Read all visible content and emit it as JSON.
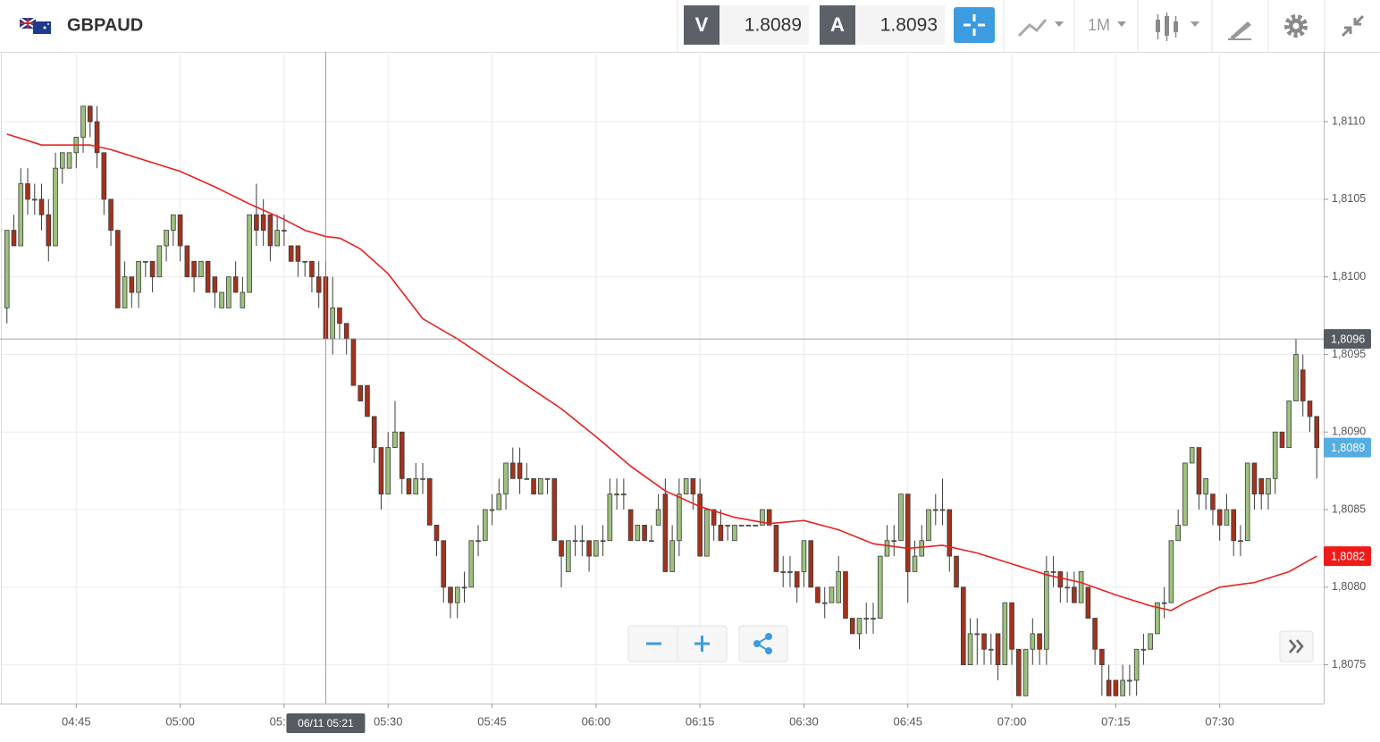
{
  "toolbar": {
    "symbol": "GBPAUD",
    "bid_label": "V",
    "bid": 1.8089,
    "ask_label": "A",
    "ask": 1.8093,
    "timeframe": "1M"
  },
  "chart_data": {
    "type": "candlestick",
    "x": [
      "04:35",
      "04:36",
      "04:37",
      "04:38",
      "04:39",
      "04:40",
      "04:41",
      "04:42",
      "04:43",
      "04:44",
      "04:45",
      "04:46",
      "04:47",
      "04:48",
      "04:49",
      "04:50",
      "04:51",
      "04:52",
      "04:53",
      "04:54",
      "04:55",
      "04:56",
      "04:57",
      "04:58",
      "04:59",
      "05:00",
      "05:01",
      "05:02",
      "05:03",
      "05:04",
      "05:05",
      "05:06",
      "05:07",
      "05:08",
      "05:09",
      "05:10",
      "05:11",
      "05:12",
      "05:13",
      "05:14",
      "05:15",
      "05:16",
      "05:17",
      "05:18",
      "05:19",
      "05:20",
      "05:21",
      "05:22",
      "05:23",
      "05:24",
      "05:25",
      "05:26",
      "05:27",
      "05:28",
      "05:29",
      "05:30",
      "05:31",
      "05:32",
      "05:33",
      "05:34",
      "05:35",
      "05:36",
      "05:37",
      "05:38",
      "05:39",
      "05:40",
      "05:41",
      "05:42",
      "05:43",
      "05:44",
      "05:45",
      "05:46",
      "05:47",
      "05:48",
      "05:49",
      "05:50",
      "05:51",
      "05:52",
      "05:53",
      "05:54",
      "05:55",
      "05:56",
      "05:57",
      "05:58",
      "05:59",
      "06:00",
      "06:01",
      "06:02",
      "06:03",
      "06:04",
      "06:05",
      "06:06",
      "06:07",
      "06:08",
      "06:09",
      "06:10",
      "06:11",
      "06:12",
      "06:13",
      "06:14",
      "06:15",
      "06:16",
      "06:17",
      "06:18",
      "06:19",
      "06:20",
      "06:21",
      "06:22",
      "06:23",
      "06:24",
      "06:25",
      "06:26",
      "06:27",
      "06:28",
      "06:29",
      "06:30",
      "06:31",
      "06:32",
      "06:33",
      "06:34",
      "06:35",
      "06:36",
      "06:37",
      "06:38",
      "06:39",
      "06:40",
      "06:41",
      "06:42",
      "06:43",
      "06:44",
      "06:45",
      "06:46",
      "06:47",
      "06:48",
      "06:49",
      "06:50",
      "06:51",
      "06:52",
      "06:53",
      "06:54",
      "06:55",
      "06:56",
      "06:57",
      "06:58",
      "06:59",
      "07:00",
      "07:01",
      "07:02",
      "07:03",
      "07:04",
      "07:05",
      "07:06",
      "07:07",
      "07:08",
      "07:09",
      "07:10",
      "07:11",
      "07:12",
      "07:13",
      "07:14",
      "07:15",
      "07:16",
      "07:17",
      "07:18",
      "07:19",
      "07:20",
      "07:21",
      "07:22",
      "07:23",
      "07:24",
      "07:25",
      "07:26",
      "07:27",
      "07:28",
      "07:29",
      "07:30",
      "07:31",
      "07:32",
      "07:33",
      "07:34",
      "07:35",
      "07:36",
      "07:37",
      "07:38",
      "07:39",
      "07:40",
      "07:41",
      "07:42",
      "07:43",
      "07:44"
    ],
    "open": [
      1.8098,
      1.8103,
      1.8102,
      1.8106,
      1.8105,
      1.8105,
      1.8104,
      1.8102,
      1.8107,
      1.8107,
      1.8108,
      1.8109,
      1.8111,
      1.811,
      1.8108,
      1.8105,
      1.8103,
      1.8098,
      1.81,
      1.8099,
      1.8101,
      1.8101,
      1.81,
      1.8102,
      1.8103,
      1.8104,
      1.8102,
      1.8101,
      1.81,
      1.8101,
      1.81,
      1.8098,
      1.8098,
      1.81,
      1.8098,
      1.8099,
      1.8104,
      1.8104,
      1.8104,
      1.8102,
      1.8103,
      1.8102,
      1.8102,
      1.8101,
      1.8101,
      1.81,
      1.81,
      1.8096,
      1.8098,
      1.8097,
      1.8096,
      1.8093,
      1.8093,
      1.8091,
      1.8089,
      1.8086,
      1.8089,
      1.809,
      1.8087,
      1.8086,
      1.8087,
      1.8087,
      1.8084,
      1.8083,
      1.808,
      1.8079,
      1.808,
      1.808,
      1.8083,
      1.8083,
      1.8085,
      1.8085,
      1.8086,
      1.8088,
      1.8088,
      1.8087,
      1.8087,
      1.8086,
      1.8087,
      1.8087,
      1.8083,
      1.8081,
      1.8083,
      1.8083,
      1.8083,
      1.8082,
      1.8083,
      1.8083,
      1.8086,
      1.8086,
      1.8085,
      1.8083,
      1.8084,
      1.8083,
      1.8084,
      1.8086,
      1.8081,
      1.8083,
      1.8086,
      1.8087,
      1.8086,
      1.8082,
      1.8085,
      1.8084,
      1.8084,
      1.8083,
      1.8084,
      1.8084,
      1.8084,
      1.8084,
      1.8085,
      1.8084,
      1.8081,
      1.8081,
      1.8081,
      1.8081,
      1.8083,
      1.808,
      1.8079,
      1.8079,
      1.8079,
      1.8081,
      1.8078,
      1.8077,
      1.8078,
      1.8078,
      1.8078,
      1.8082,
      1.8083,
      1.8083,
      1.8086,
      1.8081,
      1.8082,
      1.8083,
      1.8085,
      1.8085,
      1.8085,
      1.8082,
      1.808,
      1.8075,
      1.8077,
      1.8077,
      1.8076,
      1.8077,
      1.8075,
      1.8079,
      1.8076,
      1.8073,
      1.8076,
      1.8077,
      1.8076,
      1.8081,
      1.8081,
      1.808,
      1.808,
      1.8079,
      1.808,
      1.8078,
      1.8076,
      1.8074,
      1.8074,
      1.8073,
      1.8074,
      1.8074,
      1.8076,
      1.8076,
      1.8077,
      1.8079,
      1.8079,
      1.8083,
      1.8084,
      1.8088,
      1.8089,
      1.8086,
      1.8086,
      1.8085,
      1.8084,
      1.8085,
      1.8083,
      1.8083,
      1.8088,
      1.8087,
      1.8086,
      1.8087,
      1.809,
      1.8089,
      1.8092,
      1.8094,
      1.8092,
      1.8091
    ],
    "high": [
      1.8103,
      1.8104,
      1.8107,
      1.8107,
      1.8106,
      1.8106,
      1.8105,
      1.8108,
      1.8108,
      1.8108,
      1.8109,
      1.8111,
      1.8111,
      1.8111,
      1.8108,
      1.8105,
      1.8103,
      1.8101,
      1.81,
      1.8101,
      1.8101,
      1.8101,
      1.8102,
      1.8103,
      1.8104,
      1.8104,
      1.8102,
      1.8101,
      1.8101,
      1.8101,
      1.81,
      1.8099,
      1.81,
      1.8101,
      1.81,
      1.8104,
      1.8106,
      1.8105,
      1.8104,
      1.8104,
      1.8104,
      1.8102,
      1.8102,
      1.8101,
      1.8101,
      1.8101,
      1.8101,
      1.81,
      1.8098,
      1.8097,
      1.8096,
      1.8093,
      1.8093,
      1.8091,
      1.8089,
      1.809,
      1.8092,
      1.809,
      1.8087,
      1.8088,
      1.8088,
      1.8087,
      1.8084,
      1.8083,
      1.808,
      1.808,
      1.8081,
      1.8083,
      1.8084,
      1.8085,
      1.8086,
      1.8087,
      1.8088,
      1.8089,
      1.8089,
      1.8088,
      1.8087,
      1.8087,
      1.8087,
      1.8087,
      1.8083,
      1.8083,
      1.8084,
      1.8084,
      1.8083,
      1.8083,
      1.8084,
      1.8087,
      1.8087,
      1.8087,
      1.8085,
      1.8084,
      1.8084,
      1.8084,
      1.8086,
      1.8087,
      1.8084,
      1.8087,
      1.8087,
      1.8087,
      1.8087,
      1.8085,
      1.8085,
      1.8085,
      1.8084,
      1.8084,
      1.8084,
      1.8084,
      1.8084,
      1.8085,
      1.8085,
      1.8084,
      1.8082,
      1.8082,
      1.8081,
      1.8083,
      1.8083,
      1.808,
      1.808,
      1.808,
      1.8082,
      1.8081,
      1.8078,
      1.8078,
      1.8079,
      1.8079,
      1.8082,
      1.8084,
      1.8084,
      1.8086,
      1.8086,
      1.8083,
      1.8084,
      1.8085,
      1.8086,
      1.8087,
      1.8085,
      1.8082,
      1.808,
      1.8078,
      1.8078,
      1.8077,
      1.8077,
      1.8077,
      1.8079,
      1.8079,
      1.8076,
      1.8076,
      1.8078,
      1.8077,
      1.8082,
      1.8082,
      1.8081,
      1.8081,
      1.8081,
      1.8081,
      1.808,
      1.8078,
      1.8076,
      1.8075,
      1.8074,
      1.8075,
      1.8075,
      1.8076,
      1.8077,
      1.8077,
      1.8079,
      1.808,
      1.8083,
      1.8085,
      1.8088,
      1.8089,
      1.8089,
      1.8087,
      1.8086,
      1.8085,
      1.8086,
      1.8085,
      1.8084,
      1.8088,
      1.8088,
      1.8087,
      1.8087,
      1.809,
      1.809,
      1.8092,
      1.8096,
      1.8095,
      1.8092,
      1.8091
    ],
    "low": [
      1.8097,
      1.8102,
      1.8102,
      1.8104,
      1.8104,
      1.8103,
      1.8101,
      1.8102,
      1.8106,
      1.8107,
      1.8107,
      1.8108,
      1.8109,
      1.8107,
      1.8104,
      1.8102,
      1.8098,
      1.8098,
      1.8098,
      1.8098,
      1.81,
      1.8099,
      1.81,
      1.8101,
      1.8102,
      1.8101,
      1.81,
      1.8099,
      1.81,
      1.8099,
      1.8098,
      1.8098,
      1.8098,
      1.8099,
      1.8098,
      1.8099,
      1.8102,
      1.8102,
      1.8101,
      1.8102,
      1.8102,
      1.8101,
      1.81,
      1.81,
      1.8099,
      1.8098,
      1.8096,
      1.8095,
      1.8096,
      1.8095,
      1.8093,
      1.8092,
      1.8091,
      1.8088,
      1.8085,
      1.8086,
      1.8089,
      1.8086,
      1.8086,
      1.8086,
      1.8086,
      1.8084,
      1.8082,
      1.8079,
      1.8078,
      1.8078,
      1.8079,
      1.808,
      1.8082,
      1.8083,
      1.8084,
      1.8085,
      1.8085,
      1.8087,
      1.8086,
      1.8087,
      1.8086,
      1.8086,
      1.8086,
      1.8083,
      1.808,
      1.8081,
      1.8082,
      1.8082,
      1.8081,
      1.8082,
      1.8082,
      1.8083,
      1.8085,
      1.8085,
      1.8083,
      1.8083,
      1.8083,
      1.8083,
      1.8084,
      1.8081,
      1.8081,
      1.8082,
      1.8086,
      1.8085,
      1.8082,
      1.8082,
      1.8083,
      1.8083,
      1.8083,
      1.8083,
      1.8084,
      1.8084,
      1.8084,
      1.8084,
      1.8084,
      1.8081,
      1.808,
      1.808,
      1.8079,
      1.808,
      1.808,
      1.8079,
      1.8078,
      1.8079,
      1.8079,
      1.8078,
      1.8077,
      1.8076,
      1.8077,
      1.8077,
      1.8078,
      1.8082,
      1.8082,
      1.8083,
      1.8079,
      1.8081,
      1.8082,
      1.8083,
      1.8084,
      1.8084,
      1.8081,
      1.808,
      1.8075,
      1.8075,
      1.8075,
      1.8075,
      1.8075,
      1.8074,
      1.8075,
      1.8075,
      1.8073,
      1.8073,
      1.8075,
      1.8075,
      1.8075,
      1.808,
      1.8079,
      1.8079,
      1.8079,
      1.8079,
      1.8078,
      1.8075,
      1.8073,
      1.8073,
      1.8073,
      1.8073,
      1.8073,
      1.8073,
      1.8075,
      1.8076,
      1.8077,
      1.8078,
      1.8079,
      1.8083,
      1.8084,
      1.8088,
      1.8085,
      1.8085,
      1.8084,
      1.8083,
      1.8084,
      1.8082,
      1.8082,
      1.8083,
      1.8085,
      1.8085,
      1.8085,
      1.8086,
      1.8089,
      1.8089,
      1.8092,
      1.8091,
      1.809,
      1.8087
    ],
    "close": [
      1.8103,
      1.8102,
      1.8106,
      1.8105,
      1.8105,
      1.8104,
      1.8102,
      1.8107,
      1.8108,
      1.8108,
      1.8109,
      1.8111,
      1.811,
      1.8108,
      1.8105,
      1.8103,
      1.8098,
      1.81,
      1.8099,
      1.8101,
      1.8101,
      1.81,
      1.8102,
      1.8103,
      1.8104,
      1.8102,
      1.81,
      1.81,
      1.8101,
      1.8099,
      1.8099,
      1.8099,
      1.81,
      1.8099,
      1.8099,
      1.8104,
      1.8103,
      1.8103,
      1.8102,
      1.8103,
      1.8103,
      1.8101,
      1.8101,
      1.8101,
      1.81,
      1.8099,
      1.8096,
      1.8098,
      1.8097,
      1.8096,
      1.8093,
      1.8092,
      1.8091,
      1.8089,
      1.8086,
      1.8089,
      1.809,
      1.8087,
      1.8086,
      1.8087,
      1.8087,
      1.8084,
      1.8083,
      1.808,
      1.8079,
      1.808,
      1.808,
      1.8083,
      1.8083,
      1.8085,
      1.8085,
      1.8086,
      1.8088,
      1.8087,
      1.8087,
      1.8087,
      1.8086,
      1.8087,
      1.8087,
      1.8083,
      1.8082,
      1.8083,
      1.8083,
      1.8083,
      1.8082,
      1.8083,
      1.8083,
      1.8086,
      1.8086,
      1.8086,
      1.8083,
      1.8084,
      1.8083,
      1.8083,
      1.8085,
      1.8081,
      1.8083,
      1.8086,
      1.8087,
      1.8086,
      1.8082,
      1.8085,
      1.8084,
      1.8083,
      1.8084,
      1.8084,
      1.8084,
      1.8084,
      1.8084,
      1.8085,
      1.8084,
      1.8081,
      1.8081,
      1.8081,
      1.808,
      1.8083,
      1.808,
      1.8079,
      1.8079,
      1.808,
      1.8081,
      1.8078,
      1.8077,
      1.8078,
      1.8078,
      1.8078,
      1.8082,
      1.8083,
      1.8083,
      1.8086,
      1.8081,
      1.8082,
      1.8083,
      1.8085,
      1.8085,
      1.8085,
      1.8082,
      1.808,
      1.8075,
      1.8077,
      1.8077,
      1.8076,
      1.8076,
      1.8075,
      1.8079,
      1.8076,
      1.8073,
      1.8076,
      1.8077,
      1.8076,
      1.8081,
      1.8081,
      1.808,
      1.808,
      1.8079,
      1.8081,
      1.8078,
      1.8076,
      1.8075,
      1.8073,
      1.8073,
      1.8074,
      1.8074,
      1.8076,
      1.8076,
      1.8077,
      1.8079,
      1.8079,
      1.8083,
      1.8084,
      1.8088,
      1.8089,
      1.8086,
      1.8087,
      1.8085,
      1.8084,
      1.8085,
      1.8083,
      1.8083,
      1.8088,
      1.8086,
      1.8086,
      1.8087,
      1.809,
      1.8089,
      1.8092,
      1.8095,
      1.8092,
      1.8091,
      1.8089
    ],
    "up_color": "#9ec27e",
    "down_color": "#a3321c",
    "ma": {
      "color": "#e8211f",
      "x": [
        "04:35",
        "04:40",
        "04:47",
        "04:50",
        "04:55",
        "05:00",
        "05:05",
        "05:10",
        "05:15",
        "05:18",
        "05:21",
        "05:23",
        "05:26",
        "05:30",
        "05:35",
        "05:40",
        "05:45",
        "05:50",
        "05:55",
        "06:00",
        "06:05",
        "06:10",
        "06:15",
        "06:20",
        "06:25",
        "06:30",
        "06:35",
        "06:40",
        "06:45",
        "06:50",
        "06:55",
        "07:00",
        "07:05",
        "07:10",
        "07:15",
        "07:20",
        "07:23",
        "07:25",
        "07:30",
        "07:35",
        "07:40",
        "07:44"
      ],
      "values": [
        1.81092,
        1.81085,
        1.81085,
        1.81082,
        1.81075,
        1.81068,
        1.81058,
        1.81047,
        1.81037,
        1.8103,
        1.81026,
        1.81025,
        1.81018,
        1.81002,
        1.80973,
        1.8096,
        1.80945,
        1.8093,
        1.80915,
        1.80897,
        1.80878,
        1.80862,
        1.80852,
        1.80845,
        1.80841,
        1.80843,
        1.80837,
        1.80828,
        1.80825,
        1.80827,
        1.80822,
        1.80815,
        1.80808,
        1.80803,
        1.80795,
        1.80788,
        1.80785,
        1.8079,
        1.808,
        1.80803,
        1.8081,
        1.8082
      ]
    },
    "xlim": [
      "04:34",
      "07:45"
    ],
    "xticks": [
      "04:45",
      "05:00",
      "05:15",
      "05:30",
      "05:45",
      "06:00",
      "06:15",
      "06:30",
      "06:45",
      "07:00",
      "07:15",
      "07:30"
    ],
    "ylim": [
      1.80725,
      1.81145
    ],
    "yticks": [
      {
        "value": 1.8075,
        "label": "1,8075"
      },
      {
        "value": 1.808,
        "label": "1,8080"
      },
      {
        "value": 1.8085,
        "label": "1,8085"
      },
      {
        "value": 1.809,
        "label": "1,8090"
      },
      {
        "value": 1.8095,
        "label": "1,8095"
      },
      {
        "value": 1.81,
        "label": "1,8100"
      },
      {
        "value": 1.8105,
        "label": "1,8105"
      },
      {
        "value": 1.811,
        "label": "1,8110"
      }
    ],
    "grid": true,
    "crosshair": {
      "x": "05:21",
      "x_label": "06/11 05:21",
      "y": {
        "value": 1.8096,
        "label": "1,8096"
      }
    },
    "price_tags": [
      {
        "value": 1.8089,
        "label": "1,8089",
        "color": "#56ade0"
      },
      {
        "value": 1.8082,
        "label": "1,8082",
        "color": "#ee1b1b"
      }
    ]
  }
}
